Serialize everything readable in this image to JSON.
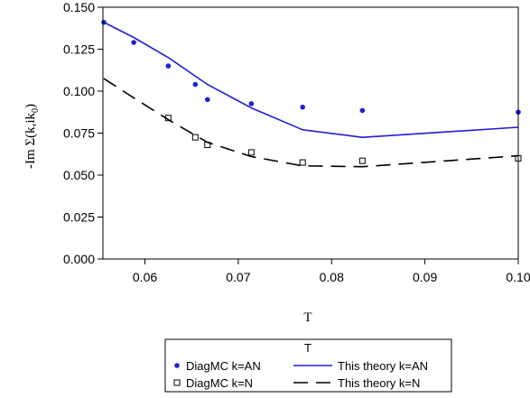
{
  "chart_data": {
    "type": "line",
    "xlabel": "T",
    "ylabel": "-Im Σ(k,ik",
    "ylabel_subscript": "0",
    "ylabel_close": ")",
    "xlim": [
      0.0555,
      0.1
    ],
    "ylim": [
      0.0,
      0.15
    ],
    "x_ticks": [
      0.06,
      0.07,
      0.08,
      0.09,
      0.1
    ],
    "x_tick_labels": [
      "0.06",
      "0.07",
      "0.08",
      "0.09",
      "0.10"
    ],
    "y_ticks": [
      0.0,
      0.025,
      0.05,
      0.075,
      0.1,
      0.125,
      0.15
    ],
    "y_tick_labels": [
      "0.000",
      "0.025",
      "0.050",
      "0.075",
      "0.100",
      "0.125",
      "0.150"
    ],
    "grid": false,
    "legend": {
      "title": "T",
      "placement": "bottom-center",
      "entries": [
        "DiagMC k=AN",
        "This theory k=AN",
        "DiagMC k=N",
        "This theory k=N"
      ]
    },
    "series": [
      {
        "name": "DiagMC k=AN",
        "style": "points",
        "marker": "filled-circle",
        "color": "#1f1fd6",
        "x": [
          0.0556,
          0.0588,
          0.0625,
          0.0654,
          0.0667,
          0.0714,
          0.0769,
          0.0833,
          0.1
        ],
        "y": [
          0.141,
          0.129,
          0.115,
          0.104,
          0.095,
          0.0925,
          0.0905,
          0.0885,
          0.0875
        ]
      },
      {
        "name": "This theory k=AN",
        "style": "line",
        "dash": "solid",
        "color": "#1f1fd6",
        "x": [
          0.0556,
          0.0588,
          0.0625,
          0.0667,
          0.0714,
          0.0769,
          0.0833,
          0.1
        ],
        "y": [
          0.141,
          0.132,
          0.12,
          0.104,
          0.09,
          0.077,
          0.0725,
          0.0785
        ]
      },
      {
        "name": "DiagMC k=N",
        "style": "points",
        "marker": "open-square",
        "color": "#000000",
        "x": [
          0.0625,
          0.0654,
          0.0667,
          0.0714,
          0.0769,
          0.0833,
          0.1
        ],
        "y": [
          0.084,
          0.0725,
          0.068,
          0.0635,
          0.0575,
          0.0585,
          0.06
        ]
      },
      {
        "name": "This theory k=N",
        "style": "line",
        "dash": "long-dash",
        "color": "#000000",
        "x": [
          0.0556,
          0.0588,
          0.0625,
          0.0667,
          0.0714,
          0.0769,
          0.0833,
          0.1
        ],
        "y": [
          0.1075,
          0.096,
          0.083,
          0.0695,
          0.061,
          0.0555,
          0.055,
          0.0615
        ]
      }
    ]
  }
}
